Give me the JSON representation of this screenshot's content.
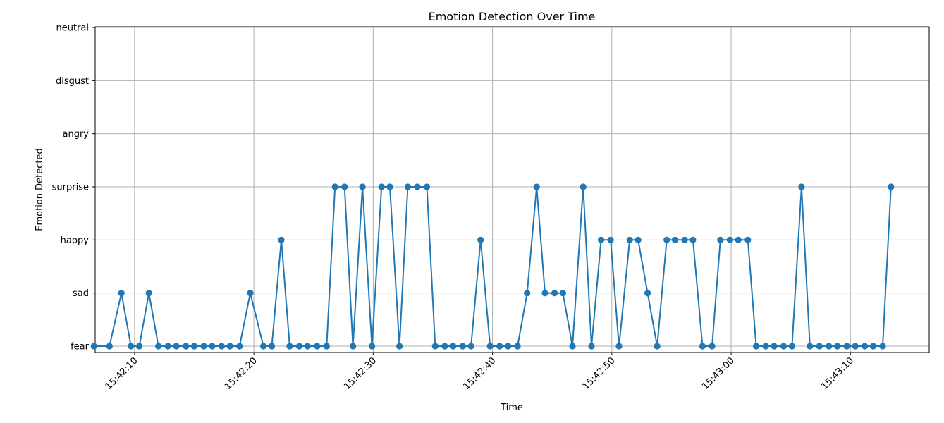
{
  "chart_data": {
    "type": "line",
    "title": "Emotion Detection Over Time",
    "xlabel": "Time",
    "ylabel": "Emotion Detected",
    "y_categories": [
      "fear",
      "sad",
      "happy",
      "surprise",
      "angry",
      "disgust",
      "neutral"
    ],
    "x_ticks": [
      "15:42:10",
      "15:42:20",
      "15:42:30",
      "15:42:40",
      "15:42:50",
      "15:43:00",
      "15:43:10"
    ],
    "xlim": [
      "15:42:06.7",
      "15:43:16.6"
    ],
    "grid": true,
    "marker": "circle",
    "color": "#1f77b4",
    "points": [
      {
        "t": "15:42:06.6",
        "y": "fear"
      },
      {
        "t": "15:42:07.9",
        "y": "fear"
      },
      {
        "t": "15:42:08.9",
        "y": "sad"
      },
      {
        "t": "15:42:09.7",
        "y": "fear"
      },
      {
        "t": "15:42:10.4",
        "y": "fear"
      },
      {
        "t": "15:42:11.2",
        "y": "sad"
      },
      {
        "t": "15:42:12.0",
        "y": "fear"
      },
      {
        "t": "15:42:12.8",
        "y": "fear"
      },
      {
        "t": "15:42:13.5",
        "y": "fear"
      },
      {
        "t": "15:42:14.3",
        "y": "fear"
      },
      {
        "t": "15:42:15.0",
        "y": "fear"
      },
      {
        "t": "15:42:15.8",
        "y": "fear"
      },
      {
        "t": "15:42:16.5",
        "y": "fear"
      },
      {
        "t": "15:42:17.3",
        "y": "fear"
      },
      {
        "t": "15:42:18.0",
        "y": "fear"
      },
      {
        "t": "15:42:18.8",
        "y": "fear"
      },
      {
        "t": "15:42:19.7",
        "y": "sad"
      },
      {
        "t": "15:42:20.8",
        "y": "fear"
      },
      {
        "t": "15:42:21.5",
        "y": "fear"
      },
      {
        "t": "15:42:22.3",
        "y": "happy"
      },
      {
        "t": "15:42:23.0",
        "y": "fear"
      },
      {
        "t": "15:42:23.8",
        "y": "fear"
      },
      {
        "t": "15:42:24.5",
        "y": "fear"
      },
      {
        "t": "15:42:25.3",
        "y": "fear"
      },
      {
        "t": "15:42:26.1",
        "y": "fear"
      },
      {
        "t": "15:42:26.8",
        "y": "surprise"
      },
      {
        "t": "15:42:27.6",
        "y": "surprise"
      },
      {
        "t": "15:42:28.3",
        "y": "fear"
      },
      {
        "t": "15:42:29.1",
        "y": "surprise"
      },
      {
        "t": "15:42:29.9",
        "y": "fear"
      },
      {
        "t": "15:42:30.7",
        "y": "surprise"
      },
      {
        "t": "15:42:31.4",
        "y": "surprise"
      },
      {
        "t": "15:42:32.2",
        "y": "fear"
      },
      {
        "t": "15:42:32.9",
        "y": "surprise"
      },
      {
        "t": "15:42:33.7",
        "y": "surprise"
      },
      {
        "t": "15:42:34.5",
        "y": "surprise"
      },
      {
        "t": "15:42:35.2",
        "y": "fear"
      },
      {
        "t": "15:42:36.0",
        "y": "fear"
      },
      {
        "t": "15:42:36.7",
        "y": "fear"
      },
      {
        "t": "15:42:37.5",
        "y": "fear"
      },
      {
        "t": "15:42:38.2",
        "y": "fear"
      },
      {
        "t": "15:42:39.0",
        "y": "happy"
      },
      {
        "t": "15:42:39.8",
        "y": "fear"
      },
      {
        "t": "15:42:40.6",
        "y": "fear"
      },
      {
        "t": "15:42:41.3",
        "y": "fear"
      },
      {
        "t": "15:42:42.1",
        "y": "fear"
      },
      {
        "t": "15:42:42.9",
        "y": "sad"
      },
      {
        "t": "15:42:43.7",
        "y": "surprise"
      },
      {
        "t": "15:42:44.4",
        "y": "sad"
      },
      {
        "t": "15:42:45.2",
        "y": "sad"
      },
      {
        "t": "15:42:45.9",
        "y": "sad"
      },
      {
        "t": "15:42:46.7",
        "y": "fear"
      },
      {
        "t": "15:42:47.6",
        "y": "surprise"
      },
      {
        "t": "15:42:48.3",
        "y": "fear"
      },
      {
        "t": "15:42:49.1",
        "y": "happy"
      },
      {
        "t": "15:42:49.9",
        "y": "happy"
      },
      {
        "t": "15:42:50.6",
        "y": "fear"
      },
      {
        "t": "15:42:51.5",
        "y": "happy"
      },
      {
        "t": "15:42:52.2",
        "y": "happy"
      },
      {
        "t": "15:42:53.0",
        "y": "sad"
      },
      {
        "t": "15:42:53.8",
        "y": "fear"
      },
      {
        "t": "15:42:54.6",
        "y": "happy"
      },
      {
        "t": "15:42:55.3",
        "y": "happy"
      },
      {
        "t": "15:42:56.1",
        "y": "happy"
      },
      {
        "t": "15:42:56.8",
        "y": "happy"
      },
      {
        "t": "15:42:57.6",
        "y": "fear"
      },
      {
        "t": "15:42:58.4",
        "y": "fear"
      },
      {
        "t": "15:42:59.1",
        "y": "happy"
      },
      {
        "t": "15:42:59.9",
        "y": "happy"
      },
      {
        "t": "15:43:00.6",
        "y": "happy"
      },
      {
        "t": "15:43:01.4",
        "y": "happy"
      },
      {
        "t": "15:43:02.1",
        "y": "fear"
      },
      {
        "t": "15:43:02.9",
        "y": "fear"
      },
      {
        "t": "15:43:03.6",
        "y": "fear"
      },
      {
        "t": "15:43:04.4",
        "y": "fear"
      },
      {
        "t": "15:43:05.1",
        "y": "fear"
      },
      {
        "t": "15:43:05.9",
        "y": "surprise"
      },
      {
        "t": "15:43:06.6",
        "y": "fear"
      },
      {
        "t": "15:43:07.4",
        "y": "fear"
      },
      {
        "t": "15:43:08.2",
        "y": "fear"
      },
      {
        "t": "15:43:08.9",
        "y": "fear"
      },
      {
        "t": "15:43:09.7",
        "y": "fear"
      },
      {
        "t": "15:43:10.4",
        "y": "fear"
      },
      {
        "t": "15:43:11.2",
        "y": "fear"
      },
      {
        "t": "15:43:11.9",
        "y": "fear"
      },
      {
        "t": "15:43:12.7",
        "y": "fear"
      },
      {
        "t": "15:43:13.4",
        "y": "surprise"
      }
    ]
  }
}
